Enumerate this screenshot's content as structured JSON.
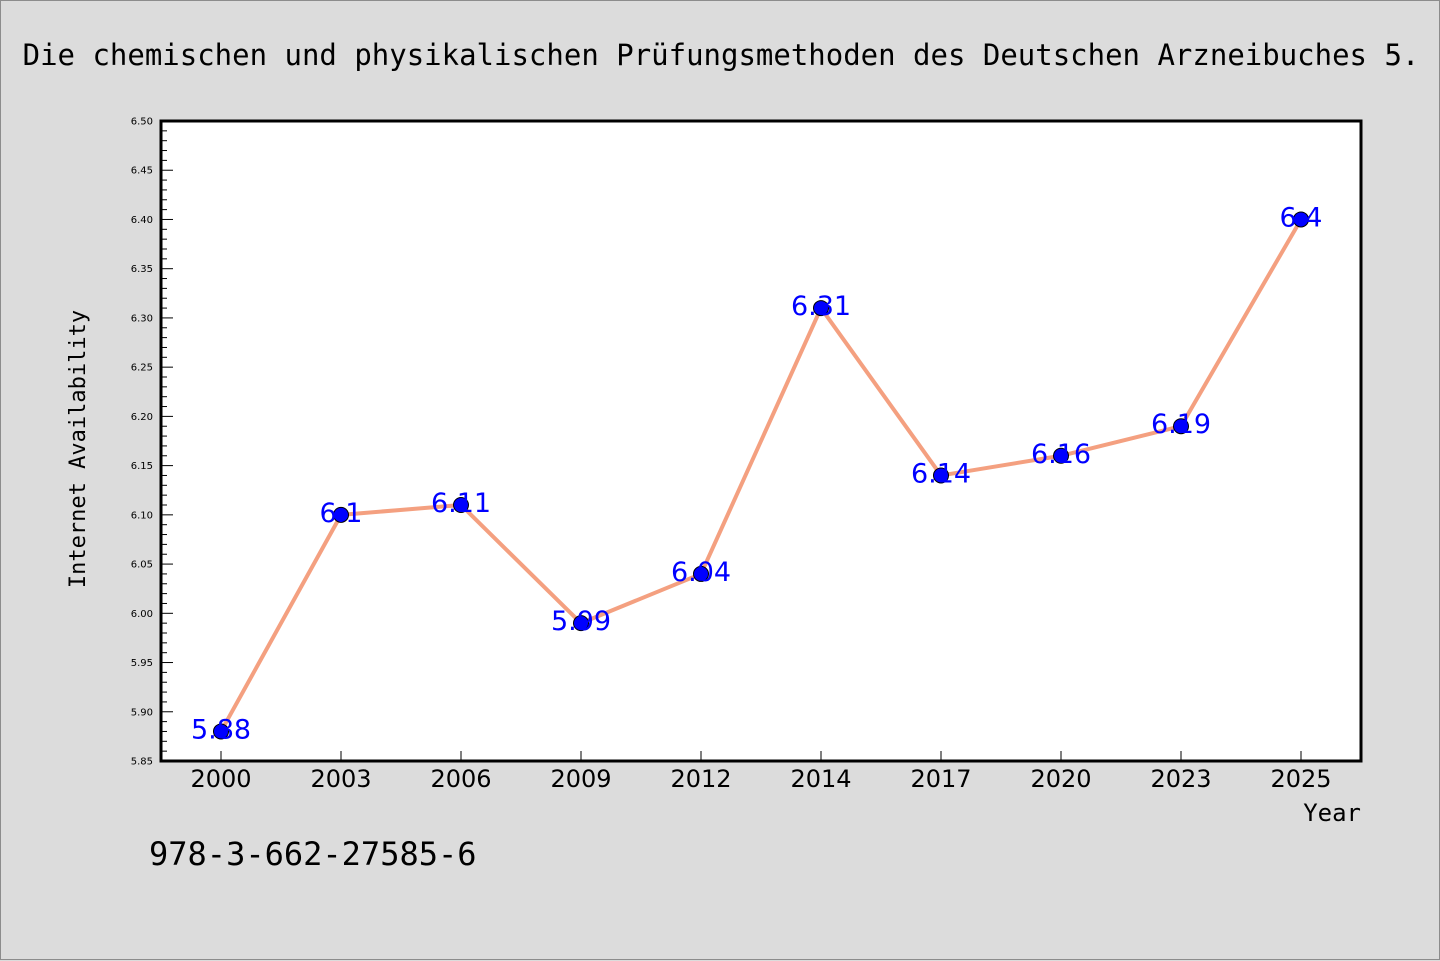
{
  "chart_data": {
    "type": "line",
    "title": "Die chemischen und physikalischen Prüfungsmethoden des Deutschen Arzneibuches 5.",
    "xlabel": "Year",
    "ylabel": "Internet Availability",
    "categories": [
      "2000",
      "2003",
      "2006",
      "2009",
      "2012",
      "2014",
      "2017",
      "2020",
      "2023",
      "2025"
    ],
    "series": [
      {
        "values": [
          5.88,
          6.1,
          6.11,
          5.99,
          6.04,
          6.31,
          6.14,
          6.16,
          6.19,
          6.4
        ],
        "data_labels": [
          "5.88",
          "6.1",
          "6.11",
          "5.99",
          "6.04",
          "6.31",
          "6.14",
          "6.16",
          "6.19",
          "6.4"
        ]
      }
    ],
    "ylim": [
      5.85,
      6.5
    ],
    "yticks": [
      "5.85",
      "5.90",
      "5.95",
      "6.00",
      "6.05",
      "6.10",
      "6.15",
      "6.20",
      "6.25",
      "6.30",
      "6.35",
      "6.40",
      "6.45",
      "6.50"
    ],
    "grid": false,
    "line_color": "#f4a080",
    "marker_color": "#0000ff",
    "label_color": "#0000ff"
  },
  "footnote": "978-3-662-27585-6"
}
